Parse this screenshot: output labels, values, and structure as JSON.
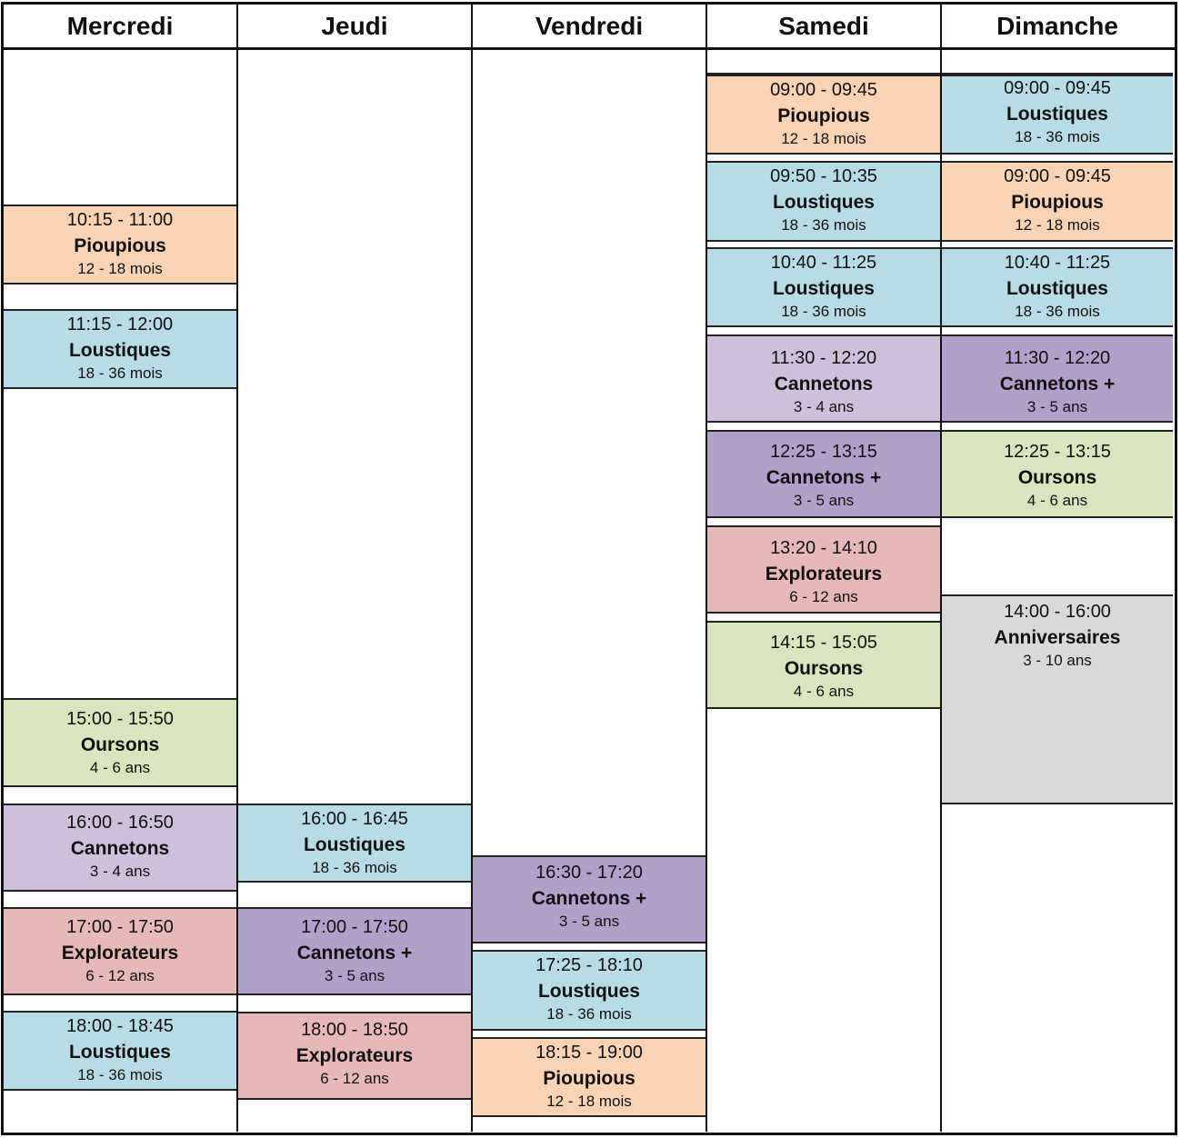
{
  "days": [
    "Mercredi",
    "Jeudi",
    "Vendredi",
    "Samedi",
    "Dimanche"
  ],
  "colors": {
    "Pioupious": "#fad3b4",
    "Loustiques": "#b8dce6",
    "Oursons": "#d8e5bd",
    "Cannetons": "#ccc0da",
    "Cannetons +": "#b1a0c9",
    "Explorateurs": "#e6b8b8",
    "Anniversaires": "#d9d9d9"
  },
  "sessions": {
    "mercredi": [
      {
        "time": "10:15 - 11:00",
        "name": "Pioupious",
        "age": "12 - 18 mois"
      },
      {
        "time": "11:15 - 12:00",
        "name": "Loustiques",
        "age": "18 - 36 mois"
      },
      {
        "time": "15:00 - 15:50",
        "name": "Oursons",
        "age": "4 - 6 ans"
      },
      {
        "time": "16:00 - 16:50",
        "name": "Cannetons",
        "age": "3 - 4 ans"
      },
      {
        "time": "17:00 - 17:50",
        "name": "Explorateurs",
        "age": "6 - 12 ans"
      },
      {
        "time": "18:00 - 18:45",
        "name": "Loustiques",
        "age": "18 - 36 mois"
      }
    ],
    "jeudi": [
      {
        "time": "16:00 - 16:45",
        "name": "Loustiques",
        "age": "18 - 36 mois"
      },
      {
        "time": "17:00 - 17:50",
        "name": "Cannetons +",
        "age": "3 - 5 ans"
      },
      {
        "time": "18:00 - 18:50",
        "name": "Explorateurs",
        "age": "6 - 12 ans"
      }
    ],
    "vendredi": [
      {
        "time": "16:30 - 17:20",
        "name": "Cannetons +",
        "age": "3 - 5 ans"
      },
      {
        "time": "17:25 - 18:10",
        "name": "Loustiques",
        "age": "18 - 36 mois"
      },
      {
        "time": "18:15 - 19:00",
        "name": "Pioupious",
        "age": "12 - 18 mois"
      }
    ],
    "samedi": [
      {
        "time": "09:00 - 09:45",
        "name": "Pioupious",
        "age": "12 - 18 mois"
      },
      {
        "time": "09:50 - 10:35",
        "name": "Loustiques",
        "age": "18 - 36 mois"
      },
      {
        "time": "10:40 - 11:25",
        "name": "Loustiques",
        "age": "18 - 36 mois"
      },
      {
        "time": "11:30 - 12:20",
        "name": "Cannetons",
        "age": "3 - 4 ans"
      },
      {
        "time": "12:25 - 13:15",
        "name": "Cannetons +",
        "age": "3 - 5 ans"
      },
      {
        "time": "13:20 - 14:10",
        "name": "Explorateurs",
        "age": "6 - 12 ans"
      },
      {
        "time": "14:15 - 15:05",
        "name": "Oursons",
        "age": "4 - 6 ans"
      }
    ],
    "dimanche": [
      {
        "time": "09:00 - 09:45",
        "name": "Loustiques",
        "age": "18 - 36 mois"
      },
      {
        "time": "09:00 - 09:45",
        "name": "Pioupious",
        "age": "12 - 18 mois"
      },
      {
        "time": "10:40 - 11:25",
        "name": "Loustiques",
        "age": "18 - 36 mois"
      },
      {
        "time": "11:30 - 12:20",
        "name": "Cannetons +",
        "age": "3 - 5 ans"
      },
      {
        "time": "12:25 - 13:15",
        "name": "Oursons",
        "age": "4 - 6 ans"
      },
      {
        "time": "14:00 - 16:00",
        "name": "Anniversaires",
        "age": "3 - 10 ans"
      }
    ]
  }
}
